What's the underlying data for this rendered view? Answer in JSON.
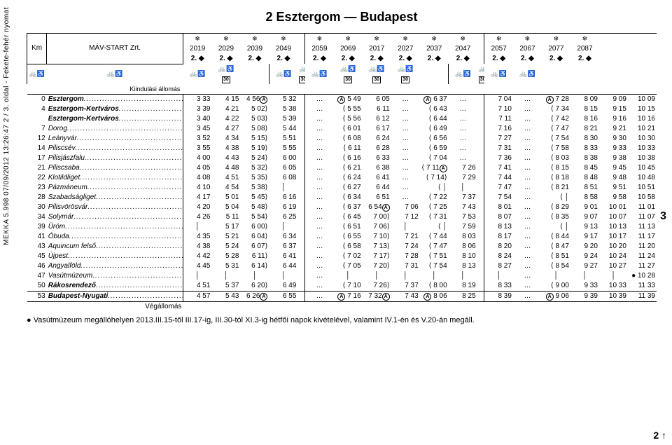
{
  "meta": {
    "side_left": "MEKKA  5.998    07/09/2012 13:26:47    2 / 3. oldal  -  Fekete-fehér nyomat",
    "side_right_top": "3",
    "side_right_bot": "2 ↑"
  },
  "title": "2  Esztergom — Budapest",
  "header": {
    "km_label": "Km",
    "operator": "MÁV-START Zrt.",
    "kiindulasi": "Kiindulási állomás",
    "vegallomas": "Végállomás"
  },
  "groups": [
    {
      "span": 4,
      "trains": [
        "2019",
        "2029",
        "2039",
        "2049"
      ],
      "sym2": [
        "2. ◆",
        "2. ◆",
        "2. ◆",
        "2. ◆"
      ],
      "r3": [
        "bw",
        "bw",
        "bw",
        "bw30"
      ]
    },
    {
      "span": 6,
      "trains": [
        "2059",
        "2069",
        "2017",
        "2027",
        "2037",
        "2047"
      ],
      "sym2": [
        "2. ◆",
        "2. ◆",
        "2. ◆",
        "2. ◆",
        "2. ◆",
        "2. ◆"
      ],
      "r3": [
        "bw",
        "bw30",
        "bw",
        "bw30",
        "bw30",
        "bw30"
      ]
    },
    {
      "span": 4,
      "trains": [
        "2057",
        "2067",
        "2077",
        "2087"
      ],
      "sym2": [
        "2. ◆",
        "2. ◆",
        "2. ◆",
        "2. ◆"
      ],
      "r3": [
        "bw",
        "bw30",
        "bw",
        "bw"
      ]
    }
  ],
  "rows": [
    {
      "km": "0",
      "name": "Esztergom",
      "note": "4",
      "bold": true,
      "g1": [
        "3 33",
        "4 15",
        "4 56Ⓐ",
        "5 32"
      ],
      "g2": [
        "...",
        "Ⓐ 5 49",
        "6 05",
        "...",
        "Ⓐ 6 37",
        "..."
      ],
      "g3": [
        "7 04",
        "...",
        "Ⓐ 7 28",
        "8 09",
        "9 09",
        "10 09"
      ],
      "g3span": false
    },
    {
      "km": "4",
      "name": "Esztergom-Kertváros",
      "note": "○",
      "bold": true,
      "g1": [
        "3 39",
        "4 21",
        "5 02⟩",
        "5 38"
      ],
      "g2": [
        "...",
        "⟨ 5 55",
        "6 11",
        "...",
        "⟨ 6 43",
        "..."
      ],
      "g3": [
        "7 10",
        "...",
        "⟨ 7 34",
        "8 15",
        "9 15",
        "10 15"
      ]
    },
    {
      "km": "",
      "name": "Esztergom-Kertváros",
      "bold": true,
      "g1": [
        "3 40",
        "4 22",
        "5 03⟩",
        "5 39"
      ],
      "g2": [
        "...",
        "⟨ 5 56",
        "6 12",
        "...",
        "⟨ 6 44",
        "..."
      ],
      "g3": [
        "7 11",
        "...",
        "⟨ 7 42",
        "8 16",
        "9 16",
        "10 16"
      ]
    },
    {
      "km": "7",
      "name": "Dorog",
      "g1": [
        "3 45",
        "4 27",
        "5 08⟩",
        "5 44"
      ],
      "g2": [
        "...",
        "⟨ 6 01",
        "6 17",
        "...",
        "⟨ 6 49",
        "..."
      ],
      "g3": [
        "7 16",
        "...",
        "⟨ 7 47",
        "8 21",
        "9 21",
        "10 21"
      ]
    },
    {
      "km": "12",
      "name": "Leányvár",
      "g1": [
        "3 52",
        "4 34",
        "5 15⟩",
        "5 51"
      ],
      "g2": [
        "...",
        "⟨ 6 08",
        "6 24",
        "...",
        "⟨ 6 56",
        "..."
      ],
      "g3": [
        "7 27",
        "...",
        "⟨ 7 54",
        "8 30",
        "9 30",
        "10 30"
      ]
    },
    {
      "km": "14",
      "name": "Piliscsév",
      "g1": [
        "3 55",
        "4 38",
        "5 19⟩",
        "5 55"
      ],
      "g2": [
        "...",
        "⟨ 6 11",
        "6 28",
        "...",
        "⟨ 6 59",
        "..."
      ],
      "g3": [
        "7 31",
        "...",
        "⟨ 7 58",
        "8 33",
        "9 33",
        "10 33"
      ]
    },
    {
      "km": "17",
      "name": "Pilisjászfalu",
      "g1": [
        "4 00",
        "4 43",
        "5 24⟩",
        "6 00"
      ],
      "g2": [
        "...",
        "⟨ 6 16",
        "6 33",
        "...",
        "⟨ 7 04",
        "..."
      ],
      "g3": [
        "7 36",
        "...",
        "⟨ 8 03",
        "8 38",
        "9 38",
        "10 38"
      ]
    },
    {
      "km": "21",
      "name": "Piliscsaba",
      "g1": [
        "4 05",
        "4 48",
        "5 32⟩",
        "6 05"
      ],
      "g2": [
        "...",
        "⟨ 6 21",
        "6 38",
        "...",
        "⟨ 7 11Ⓐ",
        "7 26"
      ],
      "g3": [
        "7 41",
        "...",
        "⟨ 8 15",
        "8 45",
        "9 45",
        "10 45"
      ]
    },
    {
      "km": "22",
      "name": "Klotildliget",
      "g1": [
        "4 08",
        "4 51",
        "5 35⟩",
        "6 08"
      ],
      "g2": [
        "...",
        "⟨ 6 24",
        "6 41",
        "...",
        "⟨ 7 14⟩",
        "7 29"
      ],
      "g3": [
        "7 44",
        "...",
        "⟨ 8 18",
        "8 48",
        "9 48",
        "10 48"
      ]
    },
    {
      "km": "23",
      "name": "Pázmáneum",
      "g1": [
        "4 10",
        "4 54",
        "5 38⟩",
        "│"
      ],
      "g2": [
        "...",
        "⟨ 6 27",
        "6 44",
        "...",
        "⟨ │",
        "│"
      ],
      "g3": [
        "7 47",
        "...",
        "⟨ 8 21",
        "8 51",
        "9 51",
        "10 51"
      ]
    },
    {
      "km": "28",
      "name": "Szabadságliget",
      "g1": [
        "4 17",
        "5 01",
        "5 45⟩",
        "6 16"
      ],
      "g2": [
        "...",
        "⟨ 6 34",
        "6 51",
        "...",
        "⟨ 7 22",
        "7 37"
      ],
      "g3": [
        "7 54",
        "...",
        "⟨ │",
        "8 58",
        "9 58",
        "10 58"
      ]
    },
    {
      "km": "30",
      "name": "Pilisvörösvár",
      "g1": [
        "4 20",
        "5 04",
        "5 48⟩",
        "6 19"
      ],
      "g2": [
        "...",
        "⟨ 6 37",
        "6 54Ⓐ",
        "7 06",
        "⟨ 7 25",
        "7 43"
      ],
      "g3": [
        "8 01",
        "...",
        "⟨ 8 29",
        "9 01",
        "10 01",
        "11 01"
      ]
    },
    {
      "km": "34",
      "name": "Solymár",
      "g1": [
        "4 26",
        "5 11",
        "5 54⟩",
        "6 25"
      ],
      "g2": [
        "...",
        "⟨ 6 45",
        "7 00⟩",
        "7 12",
        "⟨ 7 31",
        "7 53"
      ],
      "g3": [
        "8 07",
        "...",
        "⟨ 8 35",
        "9 07",
        "10 07",
        "11 07"
      ]
    },
    {
      "km": "39",
      "name": "Üröm",
      "g1": [
        "│",
        "5 17",
        "6 00⟩",
        "│"
      ],
      "g2": [
        "...",
        "⟨ 6 51",
        "7 06⟩",
        "│",
        "⟨ │",
        "7 59"
      ],
      "g3": [
        "8 13",
        "...",
        "⟨ │",
        "9 13",
        "10 13",
        "11 13"
      ]
    },
    {
      "km": "41",
      "name": "Óbuda",
      "g1": [
        "4 35",
        "5 21",
        "6 04⟩",
        "6 34"
      ],
      "g2": [
        "...",
        "⟨ 6 55",
        "7 10⟩",
        "7 21",
        "⟨ 7 44",
        "8 03"
      ],
      "g3": [
        "8 17",
        "...",
        "⟨ 8 44",
        "9 17",
        "10 17",
        "11 17"
      ]
    },
    {
      "km": "43",
      "name": "Aquincum felső",
      "g1": [
        "4 38",
        "5 24",
        "6 07⟩",
        "6 37"
      ],
      "g2": [
        "...",
        "⟨ 6 58",
        "7 13⟩",
        "7 24",
        "⟨ 7 47",
        "8 06"
      ],
      "g3": [
        "8 20",
        "...",
        "⟨ 8 47",
        "9 20",
        "10 20",
        "11 20"
      ]
    },
    {
      "km": "45",
      "name": "Újpest",
      "g1": [
        "4 42",
        "5 28",
        "6 11⟩",
        "6 41"
      ],
      "g2": [
        "...",
        "⟨ 7 02",
        "7 17⟩",
        "7 28",
        "⟨ 7 51",
        "8 10"
      ],
      "g3": [
        "8 24",
        "...",
        "⟨ 8 51",
        "9 24",
        "10 24",
        "11 24"
      ]
    },
    {
      "km": "46",
      "name": "Angyalföld",
      "g1": [
        "4 45",
        "5 31",
        "6 14⟩",
        "6 44"
      ],
      "g2": [
        "...",
        "⟨ 7 05",
        "7 20⟩",
        "7 31",
        "⟨ 7 54",
        "8 13"
      ],
      "g3": [
        "8 27",
        "...",
        "⟨ 8 54",
        "9 27",
        "10 27",
        "11 27"
      ]
    },
    {
      "km": "47",
      "name": "Vasútmúzeum",
      "g1": [
        "│",
        "│",
        "│",
        "│"
      ],
      "g2": [
        "...",
        "│",
        "│",
        "│",
        "│",
        "│"
      ],
      "g3": [
        "│",
        "...",
        "│",
        "│",
        "│",
        "● 10 28"
      ]
    },
    {
      "km": "50",
      "name": "Rákosrendező",
      "note": "70",
      "bold": true,
      "g1": [
        "4 51",
        "5 37",
        "6 20⟩",
        "6 49"
      ],
      "g2": [
        "...",
        "⟨ 7 10",
        "7 26⟩",
        "7 37",
        "⟨ 8 00",
        "8 19"
      ],
      "g3": [
        "8 33",
        "...",
        "⟨ 9 00",
        "9 33",
        "10 33",
        "11 33"
      ]
    },
    {
      "km": "53",
      "name": "Budapest-Nyugati",
      "note": "71 ○",
      "bold": true,
      "last": true,
      "g1": [
        "4 57",
        "5 43",
        "6 26Ⓐ",
        "6 55"
      ],
      "g2": [
        "...",
        "Ⓐ 7 16",
        "7 32Ⓐ",
        "7 43",
        "Ⓐ 8 06",
        "8 25"
      ],
      "g3": [
        "8 39",
        "...",
        "Ⓐ 9 06",
        "9 39",
        "10 39",
        "11 39"
      ]
    }
  ],
  "footnote": "●  Vasútmúzeum megállóhelyen 2013.III.15-től III.17-ig, III.30-tól XI.3-ig hétfői napok kivételével, valamint IV.1-én és V.20-án megáll."
}
